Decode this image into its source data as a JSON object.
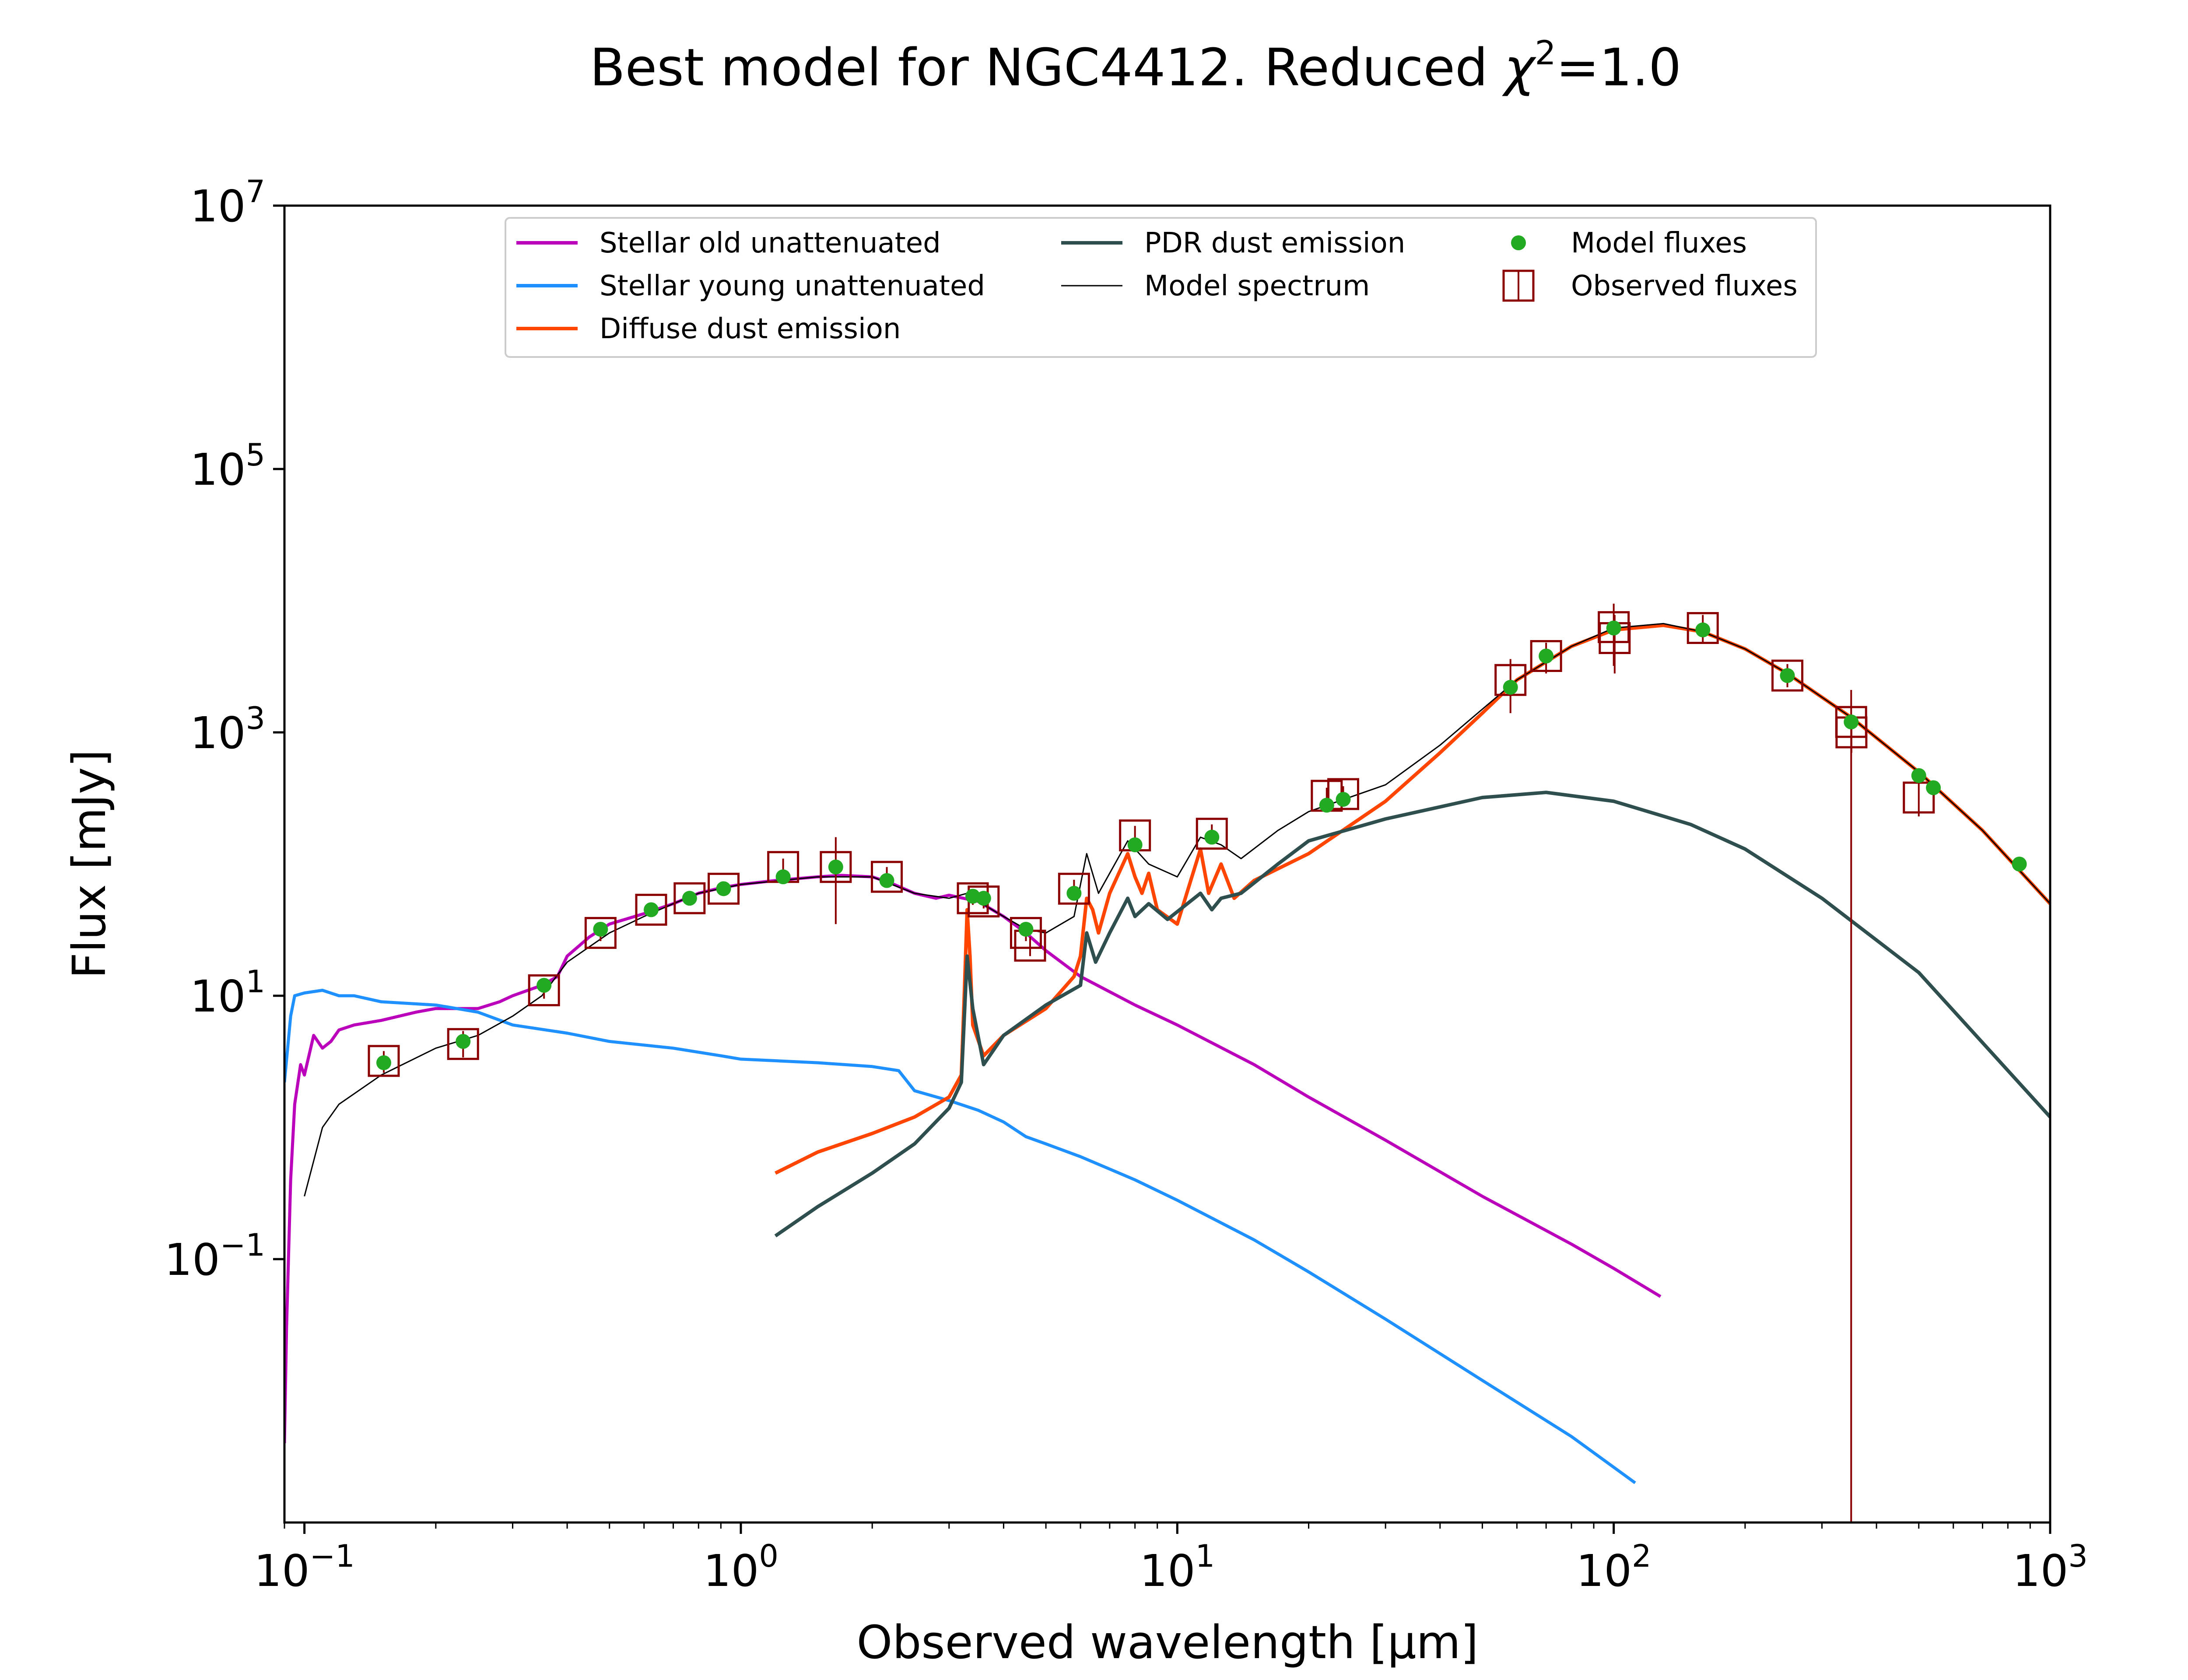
{
  "chart_data": {
    "type": "line",
    "title": "Best model for NGC4412. Reduced χ²=1.0",
    "title_parts": {
      "main": "Best model for NGC4412. Reduced ",
      "chi": "χ",
      "sup": "2",
      "tail": "=1.0"
    },
    "xlabel": "Observed wavelength [μm]",
    "ylabel": "Flux [mJy]",
    "x_scale": "log",
    "y_scale": "log",
    "xlim": [
      0.09,
      1000
    ],
    "ylim": [
      0.001,
      10000000
    ],
    "x_ticks": [
      {
        "value": 0.1,
        "base": "10",
        "exp": "−1"
      },
      {
        "value": 1,
        "base": "10",
        "exp": "0"
      },
      {
        "value": 10,
        "base": "10",
        "exp": "1"
      },
      {
        "value": 100,
        "base": "10",
        "exp": "2"
      },
      {
        "value": 1000,
        "base": "10",
        "exp": "3"
      }
    ],
    "y_ticks": [
      {
        "value": 0.1,
        "base": "10",
        "exp": "−1"
      },
      {
        "value": 10,
        "base": "10",
        "exp": "1"
      },
      {
        "value": 1000,
        "base": "10",
        "exp": "3"
      },
      {
        "value": 100000,
        "base": "10",
        "exp": "5"
      },
      {
        "value": 10000000,
        "base": "10",
        "exp": "7"
      }
    ],
    "grid": false,
    "legend_position": "top",
    "legend": [
      {
        "label": "Stellar old unattenuated",
        "kind": "line",
        "color": "#bb00bb"
      },
      {
        "label": "Stellar young unattenuated",
        "kind": "line",
        "color": "#1e90ff"
      },
      {
        "label": "Diffuse dust emission",
        "kind": "line",
        "color": "#ff4500"
      },
      {
        "label": "PDR dust emission",
        "kind": "line",
        "color": "#2f4f4f"
      },
      {
        "label": "Model spectrum",
        "kind": "thinline",
        "color": "#000000"
      },
      {
        "label": "Model fluxes",
        "kind": "dot",
        "color": "#22aa22"
      },
      {
        "label": "Observed fluxes",
        "kind": "box",
        "color": "#8b0000"
      }
    ],
    "series": [
      {
        "name": "Stellar old unattenuated",
        "color": "#bb00bb",
        "width": 7,
        "points": [
          [
            0.09,
            0.004
          ],
          [
            0.091,
            0.03
          ],
          [
            0.093,
            0.4
          ],
          [
            0.095,
            1.5
          ],
          [
            0.098,
            3
          ],
          [
            0.1,
            2.5
          ],
          [
            0.105,
            5
          ],
          [
            0.11,
            4
          ],
          [
            0.115,
            4.5
          ],
          [
            0.12,
            5.5
          ],
          [
            0.13,
            6
          ],
          [
            0.15,
            6.5
          ],
          [
            0.18,
            7.5
          ],
          [
            0.2,
            8
          ],
          [
            0.25,
            8
          ],
          [
            0.28,
            9
          ],
          [
            0.3,
            10
          ],
          [
            0.35,
            12
          ],
          [
            0.38,
            14
          ],
          [
            0.4,
            20
          ],
          [
            0.45,
            28
          ],
          [
            0.5,
            35
          ],
          [
            0.6,
            42
          ],
          [
            0.7,
            50
          ],
          [
            0.8,
            60
          ],
          [
            0.9,
            66
          ],
          [
            1.0,
            70
          ],
          [
            1.2,
            75
          ],
          [
            1.5,
            80
          ],
          [
            1.7,
            82
          ],
          [
            2.0,
            80
          ],
          [
            2.2,
            72
          ],
          [
            2.5,
            60
          ],
          [
            2.8,
            55
          ],
          [
            3.0,
            58
          ],
          [
            3.5,
            52
          ],
          [
            4.0,
            40
          ],
          [
            4.5,
            30
          ],
          [
            5,
            22
          ],
          [
            6,
            14
          ],
          [
            8,
            8.5
          ],
          [
            10,
            6
          ],
          [
            15,
            3
          ],
          [
            20,
            1.7
          ],
          [
            30,
            0.8
          ],
          [
            50,
            0.3
          ],
          [
            80,
            0.13
          ],
          [
            100,
            0.085
          ],
          [
            128,
            0.052
          ]
        ]
      },
      {
        "name": "Stellar young unattenuated",
        "color": "#1e90ff",
        "width": 7,
        "points": [
          [
            0.09,
            2.2
          ],
          [
            0.093,
            7
          ],
          [
            0.095,
            10
          ],
          [
            0.1,
            10.5
          ],
          [
            0.11,
            11
          ],
          [
            0.12,
            10
          ],
          [
            0.13,
            10
          ],
          [
            0.15,
            9
          ],
          [
            0.2,
            8.5
          ],
          [
            0.25,
            7.5
          ],
          [
            0.3,
            6
          ],
          [
            0.4,
            5.2
          ],
          [
            0.5,
            4.5
          ],
          [
            0.7,
            4
          ],
          [
            0.9,
            3.5
          ],
          [
            1.0,
            3.3
          ],
          [
            1.5,
            3.1
          ],
          [
            2.0,
            2.9
          ],
          [
            2.3,
            2.7
          ],
          [
            2.5,
            1.9
          ],
          [
            3.0,
            1.6
          ],
          [
            3.5,
            1.35
          ],
          [
            4.0,
            1.1
          ],
          [
            4.5,
            0.85
          ],
          [
            5,
            0.75
          ],
          [
            6,
            0.6
          ],
          [
            8,
            0.4
          ],
          [
            10,
            0.28
          ],
          [
            15,
            0.14
          ],
          [
            20,
            0.08
          ],
          [
            30,
            0.035
          ],
          [
            50,
            0.012
          ],
          [
            80,
            0.0045
          ],
          [
            112,
            0.002
          ]
        ]
      },
      {
        "name": "Diffuse dust emission",
        "color": "#ff4500",
        "width": 8,
        "points": [
          [
            1.2,
            0.45
          ],
          [
            1.5,
            0.65
          ],
          [
            2.0,
            0.9
          ],
          [
            2.5,
            1.2
          ],
          [
            3.0,
            1.7
          ],
          [
            3.2,
            2.5
          ],
          [
            3.25,
            10
          ],
          [
            3.3,
            45
          ],
          [
            3.35,
            20
          ],
          [
            3.4,
            6
          ],
          [
            3.6,
            3.5
          ],
          [
            4.0,
            5
          ],
          [
            5,
            8
          ],
          [
            5.8,
            14
          ],
          [
            6.0,
            20
          ],
          [
            6.2,
            55
          ],
          [
            6.4,
            45
          ],
          [
            6.6,
            30
          ],
          [
            7.0,
            60
          ],
          [
            7.7,
            120
          ],
          [
            8.0,
            80
          ],
          [
            8.3,
            60
          ],
          [
            8.6,
            85
          ],
          [
            9.0,
            45
          ],
          [
            10,
            35
          ],
          [
            11.3,
            130
          ],
          [
            11.8,
            60
          ],
          [
            12.6,
            100
          ],
          [
            13.5,
            55
          ],
          [
            15,
            75
          ],
          [
            20,
            120
          ],
          [
            30,
            300
          ],
          [
            40,
            700
          ],
          [
            50,
            1400
          ],
          [
            60,
            2500
          ],
          [
            80,
            4500
          ],
          [
            100,
            6000
          ],
          [
            130,
            6500
          ],
          [
            160,
            5800
          ],
          [
            200,
            4300
          ],
          [
            250,
            2800
          ],
          [
            350,
            1300
          ],
          [
            500,
            500
          ],
          [
            700,
            180
          ],
          [
            1000,
            50
          ]
        ]
      },
      {
        "name": "PDR dust emission",
        "color": "#2f4f4f",
        "width": 8,
        "points": [
          [
            1.2,
            0.15
          ],
          [
            1.5,
            0.25
          ],
          [
            2.0,
            0.45
          ],
          [
            2.5,
            0.75
          ],
          [
            3.0,
            1.4
          ],
          [
            3.2,
            2.2
          ],
          [
            3.3,
            20
          ],
          [
            3.4,
            8
          ],
          [
            3.6,
            3
          ],
          [
            4.0,
            5
          ],
          [
            5,
            8.5
          ],
          [
            6.0,
            12
          ],
          [
            6.2,
            30
          ],
          [
            6.5,
            18
          ],
          [
            7.0,
            30
          ],
          [
            7.7,
            55
          ],
          [
            8.0,
            40
          ],
          [
            8.6,
            50
          ],
          [
            9.5,
            38
          ],
          [
            11.3,
            60
          ],
          [
            12,
            45
          ],
          [
            12.6,
            55
          ],
          [
            14,
            60
          ],
          [
            17,
            100
          ],
          [
            20,
            150
          ],
          [
            30,
            220
          ],
          [
            50,
            320
          ],
          [
            70,
            350
          ],
          [
            100,
            300
          ],
          [
            150,
            200
          ],
          [
            200,
            130
          ],
          [
            300,
            55
          ],
          [
            500,
            15
          ],
          [
            1000,
            1.2
          ]
        ]
      },
      {
        "name": "Model spectrum",
        "color": "#000000",
        "width": 3,
        "points": [
          [
            0.1,
            0.3
          ],
          [
            0.11,
            1
          ],
          [
            0.12,
            1.5
          ],
          [
            0.15,
            2.5
          ],
          [
            0.2,
            4
          ],
          [
            0.25,
            5
          ],
          [
            0.3,
            7
          ],
          [
            0.35,
            10
          ],
          [
            0.4,
            18
          ],
          [
            0.5,
            30
          ],
          [
            0.6,
            40
          ],
          [
            0.7,
            50
          ],
          [
            0.8,
            60
          ],
          [
            1.0,
            70
          ],
          [
            1.5,
            80
          ],
          [
            2.0,
            80
          ],
          [
            2.5,
            60
          ],
          [
            3.0,
            55
          ],
          [
            3.3,
            60
          ],
          [
            3.5,
            52
          ],
          [
            4.0,
            40
          ],
          [
            4.5,
            32
          ],
          [
            5,
            30
          ],
          [
            5.8,
            40
          ],
          [
            6.2,
            120
          ],
          [
            6.6,
            60
          ],
          [
            7.7,
            150
          ],
          [
            8.6,
            100
          ],
          [
            10,
            80
          ],
          [
            11.3,
            160
          ],
          [
            12.6,
            140
          ],
          [
            14,
            110
          ],
          [
            17,
            180
          ],
          [
            20,
            250
          ],
          [
            30,
            400
          ],
          [
            40,
            800
          ],
          [
            50,
            1500
          ],
          [
            60,
            2500
          ],
          [
            80,
            4500
          ],
          [
            100,
            6200
          ],
          [
            130,
            6700
          ],
          [
            160,
            5800
          ],
          [
            200,
            4300
          ],
          [
            250,
            2800
          ],
          [
            350,
            1300
          ],
          [
            500,
            500
          ],
          [
            700,
            180
          ],
          [
            1000,
            50
          ]
        ]
      },
      {
        "name": "Model fluxes",
        "color": "#22aa22",
        "kind": "markers",
        "points": [
          [
            0.152,
            3.1
          ],
          [
            0.231,
            4.5
          ],
          [
            0.354,
            12
          ],
          [
            0.477,
            32
          ],
          [
            0.623,
            45
          ],
          [
            0.763,
            55
          ],
          [
            0.913,
            65
          ],
          [
            1.25,
            80
          ],
          [
            1.65,
            95
          ],
          [
            2.16,
            75
          ],
          [
            3.4,
            57
          ],
          [
            3.6,
            55
          ],
          [
            4.5,
            32
          ],
          [
            5.8,
            60
          ],
          [
            8.0,
            140
          ],
          [
            12,
            160
          ],
          [
            22,
            280
          ],
          [
            24,
            310
          ],
          [
            58,
            2200
          ],
          [
            70,
            3800
          ],
          [
            100,
            6200
          ],
          [
            160,
            6000
          ],
          [
            250,
            2700
          ],
          [
            350,
            1200
          ],
          [
            500,
            470
          ],
          [
            540,
            380
          ],
          [
            850,
            100
          ]
        ]
      },
      {
        "name": "Observed fluxes",
        "color": "#8b0000",
        "kind": "errorbox",
        "points": [
          {
            "x": 0.152,
            "y": 3.2,
            "lo": 2.6,
            "hi": 3.8
          },
          {
            "x": 0.231,
            "y": 4.3,
            "lo": 3.4,
            "hi": 5.4
          },
          {
            "x": 0.354,
            "y": 11,
            "lo": 9.5,
            "hi": 13
          },
          {
            "x": 0.477,
            "y": 30,
            "lo": 26,
            "hi": 34
          },
          {
            "x": 0.623,
            "y": 45,
            "lo": 40,
            "hi": 51
          },
          {
            "x": 0.763,
            "y": 55,
            "lo": 49,
            "hi": 62
          },
          {
            "x": 0.913,
            "y": 65,
            "lo": 58,
            "hi": 73
          },
          {
            "x": 1.25,
            "y": 95,
            "lo": 82,
            "hi": 110
          },
          {
            "x": 1.65,
            "y": 95,
            "lo": 35,
            "hi": 160
          },
          {
            "x": 2.16,
            "y": 80,
            "lo": 68,
            "hi": 95
          },
          {
            "x": 3.4,
            "y": 55,
            "lo": 49,
            "hi": 62
          },
          {
            "x": 3.6,
            "y": 52,
            "lo": 46,
            "hi": 58
          },
          {
            "x": 4.5,
            "y": 30,
            "lo": 26,
            "hi": 35
          },
          {
            "x": 4.6,
            "y": 24,
            "lo": 20,
            "hi": 28
          },
          {
            "x": 5.8,
            "y": 65,
            "lo": 55,
            "hi": 76
          },
          {
            "x": 8.0,
            "y": 165,
            "lo": 140,
            "hi": 195
          },
          {
            "x": 12,
            "y": 170,
            "lo": 145,
            "hi": 200
          },
          {
            "x": 22,
            "y": 330,
            "lo": 290,
            "hi": 380
          },
          {
            "x": 24,
            "y": 340,
            "lo": 300,
            "hi": 390
          },
          {
            "x": 58,
            "y": 2500,
            "lo": 1400,
            "hi": 3600
          },
          {
            "x": 70,
            "y": 3800,
            "lo": 2800,
            "hi": 4800
          },
          {
            "x": 100,
            "y": 6300,
            "lo": 3200,
            "hi": 9500
          },
          {
            "x": 100.5,
            "y": 5200,
            "lo": 2800,
            "hi": 7800
          },
          {
            "x": 160,
            "y": 6200,
            "lo": 4800,
            "hi": 7800
          },
          {
            "x": 250,
            "y": 2700,
            "lo": 2200,
            "hi": 3300
          },
          {
            "x": 350,
            "y": 1200,
            "lo": 0.001,
            "hi": 2100
          },
          {
            "x": 350.5,
            "y": 1000,
            "lo": 700,
            "hi": 1300
          },
          {
            "x": 500,
            "y": 320,
            "lo": 230,
            "hi": 420
          }
        ]
      }
    ]
  }
}
